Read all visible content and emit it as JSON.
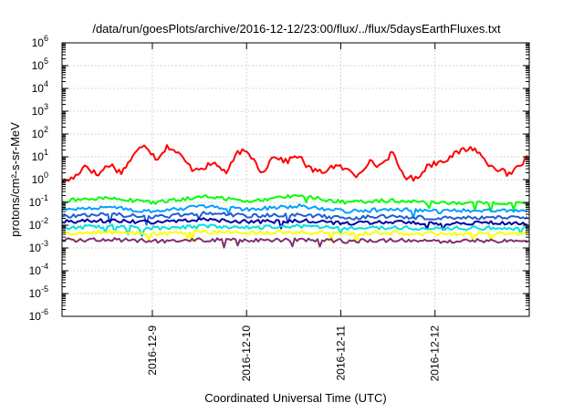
{
  "chart_data": {
    "type": "line",
    "title": "/data/run/goesPlots/archive/2016-12-12/23:00/flux/../flux/5daysEarthFluxes.txt",
    "xlabel": "Coordinated Universal Time (UTC)",
    "ylabel": "protons/cm²-s-sr-MeV",
    "y_scale": "log",
    "ylim": [
      1e-06,
      1000000.0
    ],
    "y_ticks": [
      {
        "base": "10",
        "exp": "-6",
        "value": 1e-06
      },
      {
        "base": "10",
        "exp": "-5",
        "value": 1e-05
      },
      {
        "base": "10",
        "exp": "-4",
        "value": 0.0001
      },
      {
        "base": "10",
        "exp": "-3",
        "value": 0.001
      },
      {
        "base": "10",
        "exp": "-2",
        "value": 0.01
      },
      {
        "base": "10",
        "exp": "-1",
        "value": 0.1
      },
      {
        "base": "10",
        "exp": "0",
        "value": 1
      },
      {
        "base": "10",
        "exp": "1",
        "value": 10
      },
      {
        "base": "10",
        "exp": "2",
        "value": 100
      },
      {
        "base": "10",
        "exp": "3",
        "value": 1000
      },
      {
        "base": "10",
        "exp": "4",
        "value": 10000
      },
      {
        "base": "10",
        "exp": "5",
        "value": 100000
      },
      {
        "base": "10",
        "exp": "6",
        "value": 1000000
      }
    ],
    "xlim": [
      "2016-12-08T01:00",
      "2016-12-13T00:00"
    ],
    "x_ticks": [
      "2016-12-9",
      "2016-12-10",
      "2016-12-11",
      "2016-12-12"
    ],
    "grid": true,
    "series": [
      {
        "color": "#ff0000",
        "x": [
          "2016-12-08T01:00",
          "2016-12-08T04:00",
          "2016-12-08T07:00",
          "2016-12-08T10:00",
          "2016-12-08T13:00",
          "2016-12-08T16:00",
          "2016-12-08T19:00",
          "2016-12-08T22:00",
          "2016-12-09T01:00",
          "2016-12-09T04:00",
          "2016-12-09T07:00",
          "2016-12-09T10:00",
          "2016-12-09T13:00",
          "2016-12-09T16:00",
          "2016-12-09T19:00",
          "2016-12-09T22:00",
          "2016-12-10T01:00",
          "2016-12-10T04:00",
          "2016-12-10T07:00",
          "2016-12-10T10:00",
          "2016-12-10T13:00",
          "2016-12-10T16:00",
          "2016-12-10T19:00",
          "2016-12-10T22:00",
          "2016-12-11T01:00",
          "2016-12-11T04:00",
          "2016-12-11T07:00",
          "2016-12-11T10:00",
          "2016-12-11T13:00",
          "2016-12-11T16:00",
          "2016-12-11T19:00",
          "2016-12-11T22:00",
          "2016-12-12T01:00",
          "2016-12-12T04:00",
          "2016-12-12T07:00",
          "2016-12-12T10:00",
          "2016-12-12T13:00",
          "2016-12-12T16:00",
          "2016-12-12T19:00",
          "2016-12-12T22:00",
          "2016-12-13T00:00"
        ],
        "values": [
          0.8,
          1.2,
          4.5,
          1.5,
          5,
          2,
          10,
          40,
          8,
          30,
          12,
          3,
          3.5,
          5,
          2,
          18,
          12,
          2,
          12,
          6,
          12,
          3,
          2,
          4,
          3,
          1.5,
          6,
          4,
          15,
          1.5,
          1,
          4,
          6,
          10,
          20,
          25,
          6,
          3,
          1.5,
          5,
          10
        ]
      },
      {
        "color": "#00ff00",
        "x": [
          "2016-12-08T01:00",
          "2016-12-08T13:00",
          "2016-12-09T01:00",
          "2016-12-09T13:00",
          "2016-12-10T01:00",
          "2016-12-10T13:00",
          "2016-12-11T01:00",
          "2016-12-11T13:00",
          "2016-12-12T01:00",
          "2016-12-12T13:00",
          "2016-12-13T00:00"
        ],
        "values": [
          0.12,
          0.15,
          0.1,
          0.18,
          0.12,
          0.2,
          0.1,
          0.12,
          0.09,
          0.1,
          0.08
        ]
      },
      {
        "color": "#00a0ff",
        "x": [
          "2016-12-08T01:00",
          "2016-12-08T13:00",
          "2016-12-09T01:00",
          "2016-12-09T13:00",
          "2016-12-10T01:00",
          "2016-12-10T13:00",
          "2016-12-11T01:00",
          "2016-12-11T13:00",
          "2016-12-12T01:00",
          "2016-12-12T13:00",
          "2016-12-13T00:00"
        ],
        "values": [
          0.05,
          0.06,
          0.04,
          0.07,
          0.05,
          0.07,
          0.04,
          0.05,
          0.04,
          0.045,
          0.04
        ]
      },
      {
        "color": "#1f5fd0",
        "x": [
          "2016-12-08T01:00",
          "2016-12-08T13:00",
          "2016-12-09T01:00",
          "2016-12-09T13:00",
          "2016-12-10T01:00",
          "2016-12-10T13:00",
          "2016-12-11T01:00",
          "2016-12-11T13:00",
          "2016-12-12T01:00",
          "2016-12-12T13:00",
          "2016-12-13T00:00"
        ],
        "values": [
          0.025,
          0.03,
          0.022,
          0.035,
          0.025,
          0.03,
          0.02,
          0.025,
          0.02,
          0.022,
          0.02
        ]
      },
      {
        "color": "#0000a0",
        "x": [
          "2016-12-08T01:00",
          "2016-12-08T13:00",
          "2016-12-09T01:00",
          "2016-12-09T13:00",
          "2016-12-10T01:00",
          "2016-12-10T13:00",
          "2016-12-11T01:00",
          "2016-12-11T13:00",
          "2016-12-12T01:00",
          "2016-12-12T13:00",
          "2016-12-13T00:00"
        ],
        "values": [
          0.014,
          0.016,
          0.013,
          0.018,
          0.014,
          0.016,
          0.012,
          0.014,
          0.012,
          0.013,
          0.012
        ]
      },
      {
        "color": "#00e0e0",
        "x": [
          "2016-12-08T01:00",
          "2016-12-08T13:00",
          "2016-12-09T01:00",
          "2016-12-09T13:00",
          "2016-12-10T01:00",
          "2016-12-10T13:00",
          "2016-12-11T01:00",
          "2016-12-11T13:00",
          "2016-12-12T01:00",
          "2016-12-12T13:00",
          "2016-12-13T00:00"
        ],
        "values": [
          0.008,
          0.009,
          0.007,
          0.009,
          0.008,
          0.009,
          0.007,
          0.008,
          0.007,
          0.0075,
          0.007
        ]
      },
      {
        "color": "#ffff00",
        "x": [
          "2016-12-08T01:00",
          "2016-12-08T13:00",
          "2016-12-09T01:00",
          "2016-12-09T13:00",
          "2016-12-10T01:00",
          "2016-12-10T13:00",
          "2016-12-11T01:00",
          "2016-12-11T13:00",
          "2016-12-12T01:00",
          "2016-12-12T13:00",
          "2016-12-13T00:00"
        ],
        "values": [
          0.0045,
          0.005,
          0.0042,
          0.005,
          0.0045,
          0.005,
          0.0042,
          0.0045,
          0.0042,
          0.0043,
          0.0042
        ]
      },
      {
        "color": "#80306a",
        "x": [
          "2016-12-08T01:00",
          "2016-12-08T13:00",
          "2016-12-09T01:00",
          "2016-12-09T13:00",
          "2016-12-10T01:00",
          "2016-12-10T13:00",
          "2016-12-11T01:00",
          "2016-12-11T13:00",
          "2016-12-12T01:00",
          "2016-12-12T13:00",
          "2016-12-13T00:00"
        ],
        "values": [
          0.0022,
          0.0024,
          0.002,
          0.0023,
          0.0021,
          0.0023,
          0.002,
          0.0022,
          0.002,
          0.0021,
          0.002
        ]
      }
    ]
  }
}
